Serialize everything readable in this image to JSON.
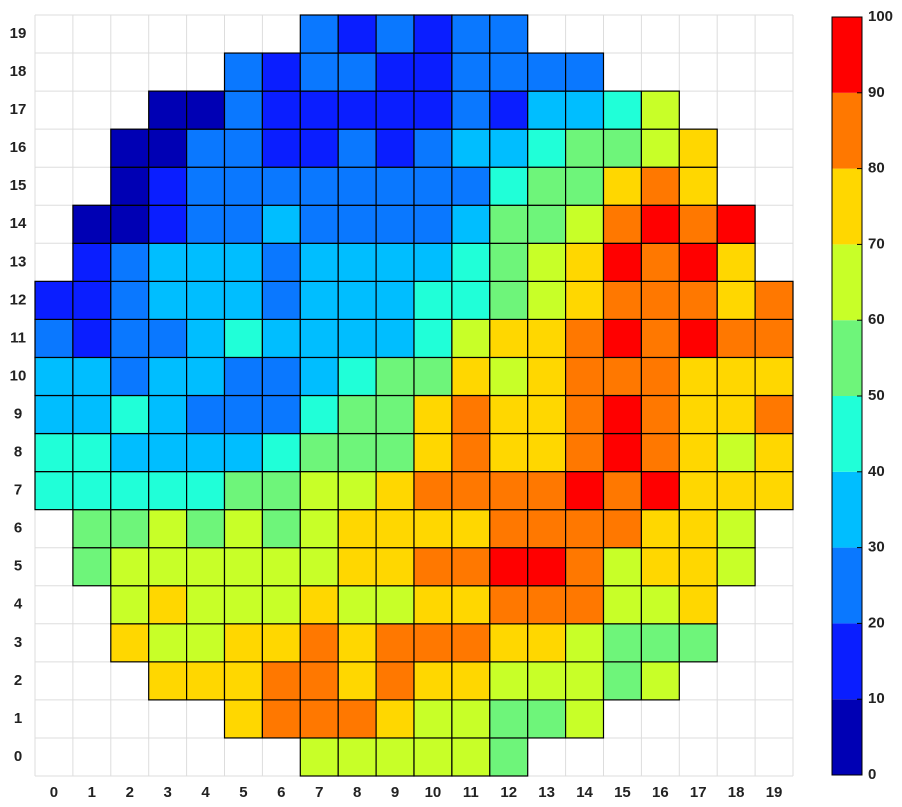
{
  "chart_data": {
    "type": "heatmap",
    "x_categories": [
      "0",
      "1",
      "2",
      "3",
      "4",
      "5",
      "6",
      "7",
      "8",
      "9",
      "10",
      "11",
      "12",
      "13",
      "14",
      "15",
      "16",
      "17",
      "18",
      "19"
    ],
    "y_categories": [
      "0",
      "1",
      "2",
      "3",
      "4",
      "5",
      "6",
      "7",
      "8",
      "9",
      "10",
      "11",
      "12",
      "13",
      "14",
      "15",
      "16",
      "17",
      "18",
      "19"
    ],
    "values": [
      [
        null,
        null,
        null,
        null,
        null,
        null,
        null,
        65,
        65,
        65,
        65,
        65,
        55,
        null,
        null,
        null,
        null,
        null,
        null,
        null
      ],
      [
        null,
        null,
        null,
        null,
        null,
        75,
        85,
        85,
        85,
        75,
        65,
        65,
        55,
        55,
        65,
        null,
        null,
        null,
        null,
        null
      ],
      [
        null,
        null,
        null,
        75,
        75,
        75,
        85,
        85,
        75,
        85,
        75,
        75,
        65,
        65,
        65,
        55,
        65,
        null,
        null,
        null
      ],
      [
        null,
        null,
        75,
        65,
        65,
        75,
        75,
        85,
        75,
        85,
        85,
        85,
        75,
        75,
        65,
        55,
        55,
        55,
        null,
        null
      ],
      [
        null,
        null,
        65,
        75,
        65,
        65,
        65,
        75,
        65,
        65,
        75,
        75,
        85,
        85,
        85,
        65,
        65,
        75,
        null,
        null
      ],
      [
        null,
        55,
        65,
        65,
        65,
        65,
        65,
        65,
        75,
        75,
        85,
        85,
        95,
        95,
        85,
        65,
        75,
        75,
        65,
        null
      ],
      [
        null,
        55,
        55,
        65,
        55,
        65,
        55,
        65,
        75,
        75,
        75,
        75,
        85,
        85,
        85,
        85,
        75,
        75,
        65,
        null
      ],
      [
        45,
        45,
        45,
        45,
        45,
        55,
        55,
        65,
        65,
        75,
        85,
        85,
        85,
        85,
        95,
        85,
        95,
        75,
        75,
        75
      ],
      [
        45,
        45,
        35,
        35,
        35,
        35,
        45,
        55,
        55,
        55,
        75,
        85,
        75,
        75,
        85,
        95,
        85,
        75,
        65,
        75
      ],
      [
        35,
        35,
        45,
        35,
        25,
        25,
        25,
        45,
        55,
        55,
        75,
        85,
        75,
        75,
        85,
        95,
        85,
        75,
        75,
        85
      ],
      [
        35,
        35,
        25,
        35,
        35,
        25,
        25,
        35,
        45,
        55,
        55,
        75,
        65,
        75,
        85,
        85,
        85,
        75,
        75,
        75
      ],
      [
        25,
        15,
        25,
        25,
        35,
        45,
        35,
        35,
        35,
        35,
        45,
        65,
        75,
        75,
        85,
        95,
        85,
        95,
        85,
        85
      ],
      [
        15,
        15,
        25,
        35,
        35,
        35,
        25,
        35,
        35,
        35,
        45,
        45,
        55,
        65,
        75,
        85,
        85,
        85,
        75,
        85
      ],
      [
        null,
        15,
        25,
        35,
        35,
        35,
        25,
        35,
        35,
        35,
        35,
        45,
        55,
        65,
        75,
        95,
        85,
        95,
        75,
        null
      ],
      [
        null,
        5,
        5,
        15,
        25,
        25,
        35,
        25,
        25,
        25,
        25,
        35,
        55,
        55,
        65,
        85,
        95,
        85,
        95,
        null
      ],
      [
        null,
        null,
        5,
        15,
        25,
        25,
        25,
        25,
        25,
        25,
        25,
        25,
        45,
        55,
        55,
        75,
        85,
        75,
        null,
        null
      ],
      [
        null,
        null,
        5,
        5,
        25,
        25,
        15,
        15,
        25,
        15,
        25,
        35,
        35,
        45,
        55,
        55,
        65,
        75,
        null,
        null
      ],
      [
        null,
        null,
        null,
        5,
        5,
        25,
        15,
        15,
        15,
        15,
        15,
        25,
        15,
        35,
        35,
        45,
        65,
        null,
        null,
        null
      ],
      [
        null,
        null,
        null,
        null,
        null,
        25,
        15,
        25,
        25,
        15,
        15,
        25,
        25,
        25,
        25,
        null,
        null,
        null,
        null,
        null
      ],
      [
        null,
        null,
        null,
        null,
        null,
        null,
        null,
        25,
        15,
        25,
        15,
        25,
        25,
        null,
        null,
        null,
        null,
        null,
        null,
        null
      ]
    ],
    "colorbar": {
      "lim": [
        0,
        100
      ],
      "ticks": [
        0,
        10,
        20,
        30,
        40,
        50,
        60,
        70,
        80,
        90,
        100
      ],
      "colors": [
        "#0000b4",
        "#0a1eff",
        "#0a78ff",
        "#00beff",
        "#20ffd8",
        "#6ef57a",
        "#c8ff28",
        "#ffd700",
        "#ff7800",
        "#ff0000"
      ]
    }
  }
}
